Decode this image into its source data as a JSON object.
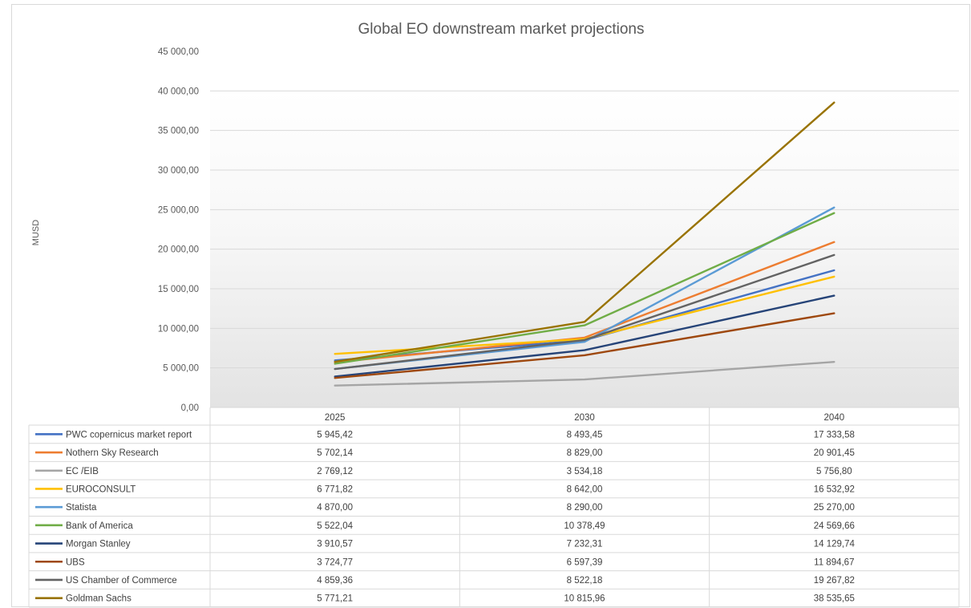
{
  "chart_data": {
    "type": "line",
    "title": "Global EO downstream market projections",
    "ylabel": "MUSD",
    "xlabel": "",
    "categories": [
      "2025",
      "2030",
      "2040"
    ],
    "ylim": [
      0,
      45000
    ],
    "y_ticks": [
      "0,00",
      "5 000,00",
      "10 000,00",
      "15 000,00",
      "20 000,00",
      "25 000,00",
      "30 000,00",
      "35 000,00",
      "40 000,00",
      "45 000,00"
    ],
    "grid": "horizontal",
    "legend": "data table below plot",
    "series": [
      {
        "name": "PWC copernicus market report",
        "color": "#4472c4",
        "values": [
          5945.42,
          8493.45,
          17333.58
        ],
        "labels": [
          "5 945,42",
          "8 493,45",
          "17 333,58"
        ]
      },
      {
        "name": "Nothern Sky Research",
        "color": "#ed7d31",
        "values": [
          5702.14,
          8829.0,
          20901.45
        ],
        "labels": [
          "5 702,14",
          "8 829,00",
          "20 901,45"
        ]
      },
      {
        "name": "EC /EIB",
        "color": "#a5a5a5",
        "values": [
          2769.12,
          3534.18,
          5756.8
        ],
        "labels": [
          "2 769,12",
          "3 534,18",
          "5 756,80"
        ]
      },
      {
        "name": "EUROCONSULT",
        "color": "#ffc000",
        "values": [
          6771.82,
          8642.0,
          16532.92
        ],
        "labels": [
          "6 771,82",
          "8 642,00",
          "16 532,92"
        ]
      },
      {
        "name": "Statista",
        "color": "#5b9bd5",
        "values": [
          4870.0,
          8290.0,
          25270.0
        ],
        "labels": [
          "4 870,00",
          "8 290,00",
          "25 270,00"
        ]
      },
      {
        "name": "Bank of America",
        "color": "#70ad47",
        "values": [
          5522.04,
          10378.49,
          24569.66
        ],
        "labels": [
          "5 522,04",
          "10 378,49",
          "24 569,66"
        ]
      },
      {
        "name": "Morgan Stanley",
        "color": "#264478",
        "values": [
          3910.57,
          7232.31,
          14129.74
        ],
        "labels": [
          "3 910,57",
          "7 232,31",
          "14 129,74"
        ]
      },
      {
        "name": "UBS",
        "color": "#9e480e",
        "values": [
          3724.77,
          6597.39,
          11894.67
        ],
        "labels": [
          "3 724,77",
          "6 597,39",
          "11 894,67"
        ]
      },
      {
        "name": "US Chamber of Commerce",
        "color": "#636363",
        "values": [
          4859.36,
          8522.18,
          19267.82
        ],
        "labels": [
          "4 859,36",
          "8 522,18",
          "19 267,82"
        ]
      },
      {
        "name": "Goldman Sachs",
        "color": "#997300",
        "values": [
          5771.21,
          10815.96,
          38535.65
        ],
        "labels": [
          "5 771,21",
          "10 815,96",
          "38 535,65"
        ]
      }
    ]
  }
}
